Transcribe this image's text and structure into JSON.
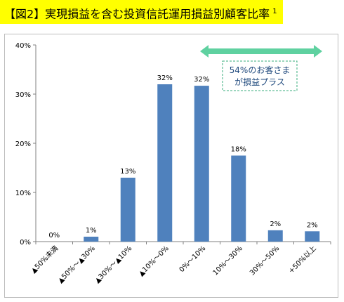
{
  "title": {
    "text": "【図2】実現損益を含む投資信託運用損益別顧客比率",
    "footnote": "1"
  },
  "annotation": {
    "line1": "54%のお客さま",
    "line2": "が損益プラス"
  },
  "colors": {
    "bar": "#4f81bd",
    "arrow": "#5fd1a0",
    "title_bg": "#ffff00",
    "annotation_border": "#3aae7e"
  },
  "chart_data": {
    "type": "bar",
    "categories": [
      "▲50%未満",
      "▲50%～▲30%",
      "▲30%～▲10%",
      "▲10%～0%",
      "0%～10%",
      "10%～30%",
      "30%～50%",
      "+50%以上"
    ],
    "values": [
      0,
      1,
      13,
      32,
      31.7,
      17.5,
      2.3,
      2.1
    ],
    "data_labels": [
      "0%",
      "1%",
      "13%",
      "32%",
      "32%",
      "18%",
      "2%",
      "2%"
    ],
    "yticks": [
      "0%",
      "10%",
      "20%",
      "30%",
      "40%"
    ],
    "ylim": [
      0,
      40
    ],
    "grid": false
  }
}
